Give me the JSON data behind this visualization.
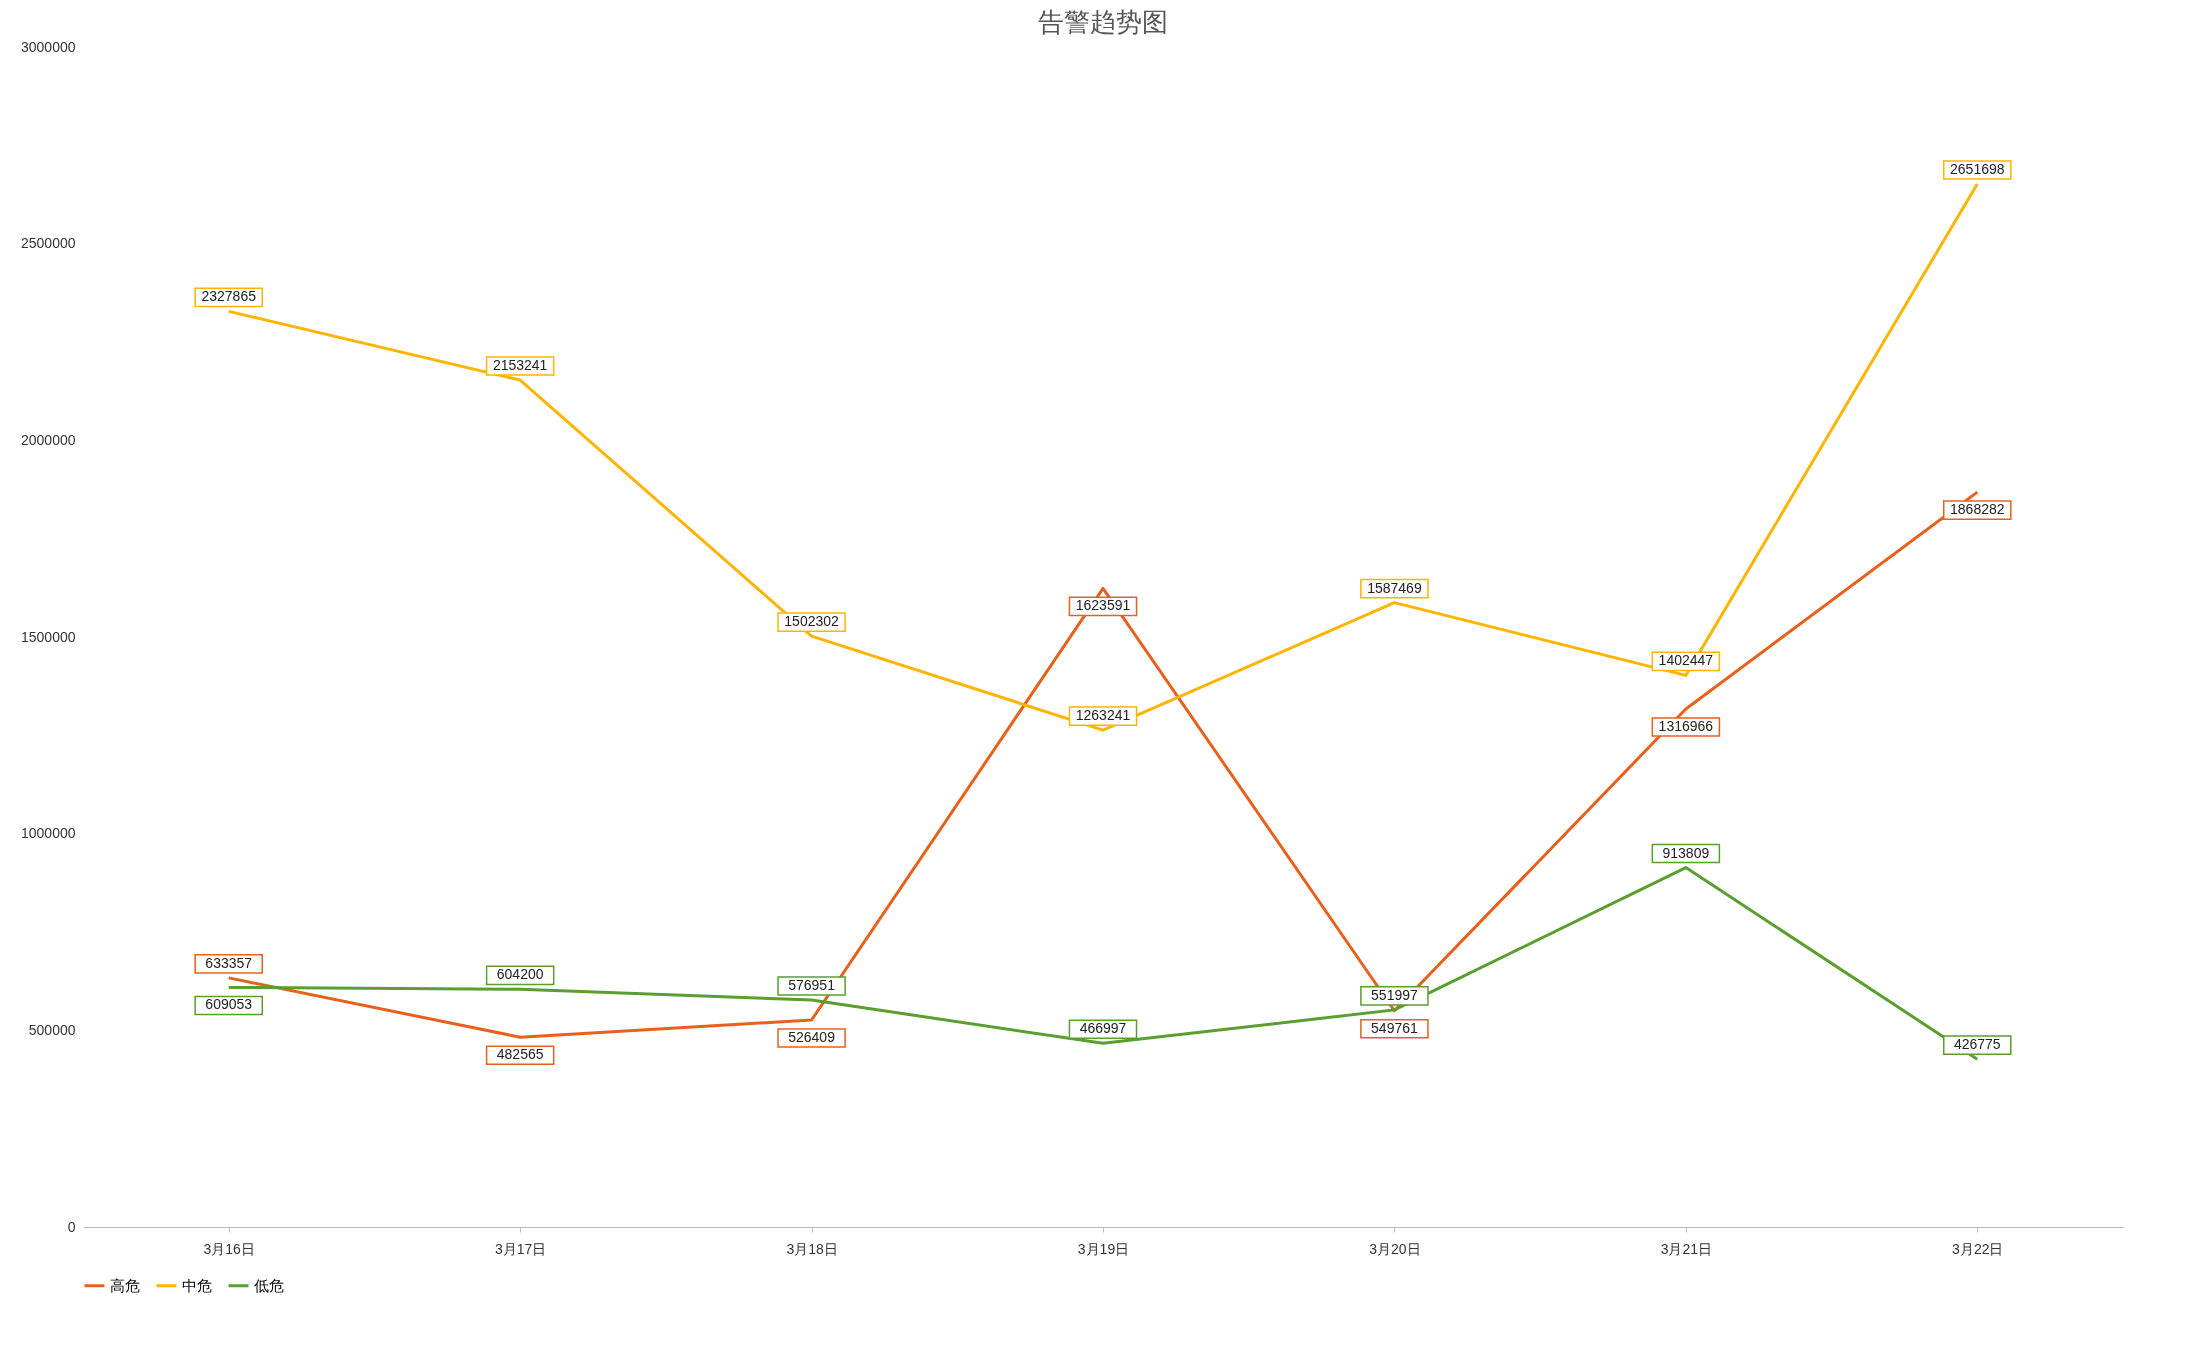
{
  "chart_data": {
    "type": "line",
    "title": "告警趋势图",
    "categories": [
      "3月16日",
      "3月17日",
      "3月18日",
      "3月19日",
      "3月20日",
      "3月21日",
      "3月22日"
    ],
    "series": [
      {
        "name": "高危",
        "color": "#e8601c",
        "values": [
          633357,
          482565,
          526409,
          1623591,
          549761,
          1316966,
          1868282
        ]
      },
      {
        "name": "中危",
        "color": "#ffb400",
        "values": [
          2327865,
          2153241,
          1502302,
          1263241,
          1587469,
          1402447,
          2651698
        ]
      },
      {
        "name": "低危",
        "color": "#5a9e2f",
        "values": [
          609053,
          604200,
          576951,
          466997,
          551997,
          913809,
          426775
        ]
      }
    ],
    "ylim": [
      0,
      3000000
    ],
    "yticks": [
      0,
      500000,
      1000000,
      1500000,
      2000000,
      2500000,
      3000000
    ],
    "grid": false,
    "legend": "bottom",
    "data_labels": true,
    "marker": "none",
    "line_style": "solid"
  }
}
